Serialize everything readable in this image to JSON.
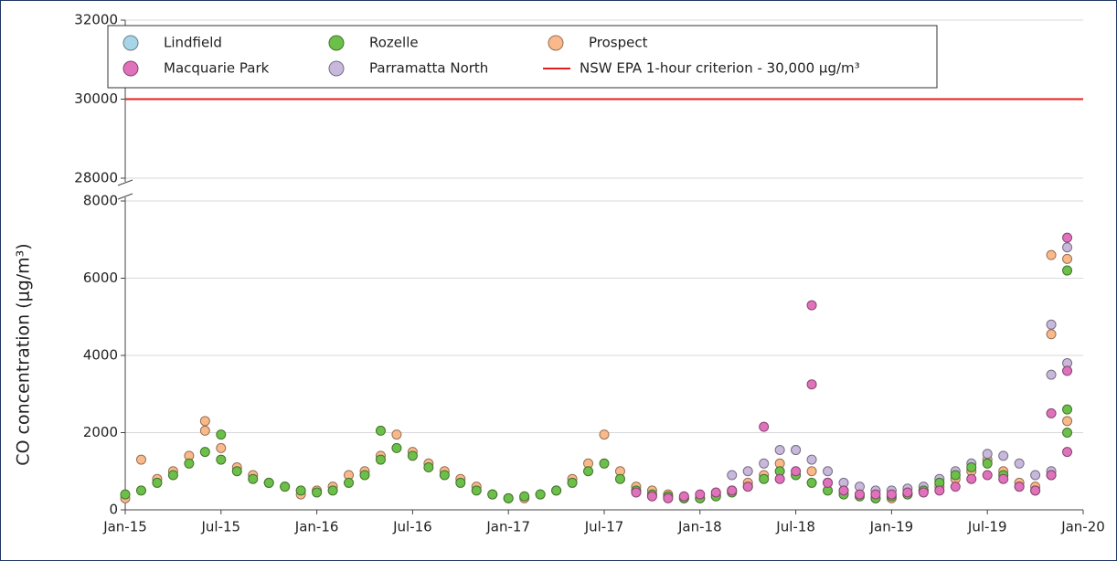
{
  "chart_data": {
    "type": "scatter",
    "y_label": "CO concentration (μg/m³)",
    "ylim": [
      0,
      32000
    ],
    "y_break": [
      8000,
      28000
    ],
    "yticks": [
      0,
      2000,
      4000,
      6000,
      8000,
      28000,
      30000,
      32000
    ],
    "xlim": [
      "2015-01",
      "2020-01"
    ],
    "xticks": [
      {
        "value": "2015-01",
        "label": "Jan-15"
      },
      {
        "value": "2015-07",
        "label": "Jul-15"
      },
      {
        "value": "2016-01",
        "label": "Jan-16"
      },
      {
        "value": "2016-07",
        "label": "Jul-16"
      },
      {
        "value": "2017-01",
        "label": "Jan-17"
      },
      {
        "value": "2017-07",
        "label": "Jul-17"
      },
      {
        "value": "2018-01",
        "label": "Jan-18"
      },
      {
        "value": "2018-07",
        "label": "Jul-18"
      },
      {
        "value": "2019-01",
        "label": "Jan-19"
      },
      {
        "value": "2019-07",
        "label": "Jul-19"
      },
      {
        "value": "2020-01",
        "label": "Jan-20"
      }
    ],
    "grid": true,
    "series": [
      {
        "name": "Lindfield",
        "color": "#a8d5e8",
        "x": [],
        "values": []
      },
      {
        "name": "Macquarie Park",
        "color": "#e071bb",
        "x": [
          "2017-09",
          "2017-10",
          "2017-11",
          "2017-12",
          "2018-01",
          "2018-02",
          "2018-03",
          "2018-04",
          "2018-05",
          "2018-06",
          "2018-07",
          "2018-08",
          "2018-08",
          "2018-09",
          "2018-10",
          "2018-11",
          "2018-12",
          "2019-01",
          "2019-02",
          "2019-03",
          "2019-04",
          "2019-05",
          "2019-06",
          "2019-07",
          "2019-08",
          "2019-09",
          "2019-10",
          "2019-11",
          "2019-11",
          "2019-12",
          "2019-12",
          "2019-12"
        ],
        "values": [
          450,
          350,
          300,
          350,
          400,
          450,
          500,
          600,
          2150,
          800,
          1000,
          5300,
          3250,
          700,
          500,
          400,
          400,
          400,
          450,
          450,
          500,
          600,
          800,
          900,
          800,
          600,
          500,
          900,
          2500,
          1500,
          7050,
          3600
        ]
      },
      {
        "name": "Rozelle",
        "color": "#6cc04a",
        "x": [
          "2015-01",
          "2015-02",
          "2015-03",
          "2015-04",
          "2015-05",
          "2015-06",
          "2015-07",
          "2015-07",
          "2015-08",
          "2015-09",
          "2015-10",
          "2015-11",
          "2015-12",
          "2016-01",
          "2016-02",
          "2016-03",
          "2016-04",
          "2016-05",
          "2016-05",
          "2016-06",
          "2016-07",
          "2016-08",
          "2016-09",
          "2016-10",
          "2016-11",
          "2016-12",
          "2017-01",
          "2017-02",
          "2017-03",
          "2017-04",
          "2017-05",
          "2017-06",
          "2017-07",
          "2017-08",
          "2017-09",
          "2017-10",
          "2017-11",
          "2017-12",
          "2018-01",
          "2018-02",
          "2018-03",
          "2018-04",
          "2018-05",
          "2018-06",
          "2018-07",
          "2018-08",
          "2018-09",
          "2018-10",
          "2018-11",
          "2018-12",
          "2019-01",
          "2019-02",
          "2019-03",
          "2019-04",
          "2019-05",
          "2019-06",
          "2019-07",
          "2019-08",
          "2019-09",
          "2019-10",
          "2019-11",
          "2019-12",
          "2019-12",
          "2019-12"
        ],
        "values": [
          400,
          500,
          700,
          900,
          1200,
          1500,
          1300,
          1950,
          1000,
          800,
          700,
          600,
          500,
          450,
          500,
          700,
          900,
          1300,
          2050,
          1600,
          1400,
          1100,
          900,
          700,
          500,
          400,
          300,
          350,
          400,
          500,
          700,
          1000,
          1200,
          800,
          500,
          400,
          350,
          300,
          300,
          350,
          450,
          600,
          800,
          1000,
          900,
          700,
          500,
          400,
          350,
          300,
          350,
          400,
          500,
          700,
          900,
          1100,
          1200,
          900,
          600,
          500,
          900,
          2000,
          6200,
          2600
        ]
      },
      {
        "name": "Parramatta North",
        "color": "#c7b8dc",
        "x": [
          "2018-03",
          "2018-04",
          "2018-05",
          "2018-06",
          "2018-07",
          "2018-08",
          "2018-09",
          "2018-10",
          "2018-11",
          "2018-12",
          "2019-01",
          "2019-02",
          "2019-03",
          "2019-04",
          "2019-05",
          "2019-06",
          "2019-07",
          "2019-08",
          "2019-09",
          "2019-10",
          "2019-11",
          "2019-11",
          "2019-11",
          "2019-12",
          "2019-12"
        ],
        "values": [
          900,
          1000,
          1200,
          1550,
          1550,
          1300,
          1000,
          700,
          600,
          500,
          500,
          550,
          600,
          800,
          1000,
          1200,
          1450,
          1400,
          1200,
          900,
          4800,
          3500,
          1000,
          6800,
          3800
        ]
      },
      {
        "name": "Prospect",
        "color": "#f9b98a",
        "x": [
          "2015-01",
          "2015-02",
          "2015-03",
          "2015-04",
          "2015-05",
          "2015-06",
          "2015-06",
          "2015-07",
          "2015-08",
          "2015-09",
          "2015-10",
          "2015-11",
          "2015-12",
          "2016-01",
          "2016-02",
          "2016-03",
          "2016-04",
          "2016-05",
          "2016-06",
          "2016-07",
          "2016-08",
          "2016-09",
          "2016-10",
          "2016-11",
          "2016-12",
          "2017-01",
          "2017-02",
          "2017-03",
          "2017-04",
          "2017-05",
          "2017-06",
          "2017-07",
          "2017-08",
          "2017-09",
          "2017-10",
          "2017-11",
          "2017-12",
          "2018-01",
          "2018-02",
          "2018-03",
          "2018-04",
          "2018-05",
          "2018-06",
          "2018-07",
          "2018-08",
          "2018-09",
          "2018-10",
          "2018-11",
          "2018-12",
          "2019-01",
          "2019-02",
          "2019-03",
          "2019-04",
          "2019-05",
          "2019-06",
          "2019-07",
          "2019-08",
          "2019-09",
          "2019-10",
          "2019-11",
          "2019-11",
          "2019-12",
          "2019-12"
        ],
        "values": [
          300,
          1300,
          800,
          1000,
          1400,
          2300,
          2050,
          1600,
          1100,
          900,
          700,
          600,
          400,
          500,
          600,
          900,
          1000,
          1400,
          1950,
          1500,
          1200,
          1000,
          800,
          600,
          400,
          300,
          300,
          400,
          500,
          800,
          1200,
          1950,
          1000,
          600,
          500,
          400,
          300,
          300,
          400,
          500,
          700,
          900,
          1200,
          1550,
          1000,
          700,
          500,
          400,
          300,
          300,
          400,
          500,
          600,
          800,
          1000,
          1300,
          1000,
          700,
          600,
          6600,
          4550,
          6500,
          2300
        ]
      },
      {
        "name": "NSW EPA 1-hour criterion - 30,000 μg/m³",
        "color": "#e81e1e",
        "value": 30000
      }
    ]
  }
}
